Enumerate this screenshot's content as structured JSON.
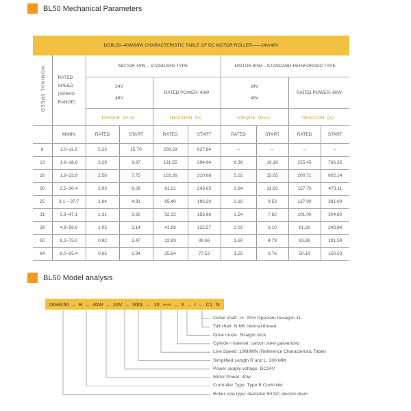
{
  "section1": {
    "title": "BL50 Mechanical Parameters"
  },
  "table": {
    "title": "DGBL50–40W/80W CHARACTERISTIC TABLE OF DC MOTOR ROLLER——24V/48V",
    "nominal_speed": "NOMINAL SPEED",
    "rated_speed": "RATED SPEED (SPEED RANGE)",
    "motor40": "MOTOR 40W – STANDARD TYPE",
    "motor80": "MOTOR 80W – STANDARD REINFORCED TYPE",
    "v24": "24V",
    "v48": "48V",
    "power40": "RATED POWER: 40W",
    "power80": "RATED POWER: 80W",
    "torque": "TORQUE（N.m）",
    "traction": "TRACTION（N）",
    "unit": "M/MIN",
    "rated": "RATED",
    "start": "START",
    "rows": [
      [
        "8",
        "1.0–11.8",
        "5.23",
        "15.70",
        "209.28",
        "627.84",
        "–",
        "–",
        "–",
        "–"
      ],
      [
        "13",
        "1.6–18.8",
        "3.29",
        "9.87",
        "131.55",
        "394.64",
        "6.39",
        "19.16",
        "255.45",
        "766.35"
      ],
      [
        "16",
        "1.9–23.9",
        "2.58",
        "7.75",
        "103.36",
        "310.08",
        "5.02",
        "15.05",
        "200.71",
        "602.14"
      ],
      [
        "20",
        "2.5–30.4",
        "2.03",
        "6.09",
        "81.21",
        "243.63",
        "3.94",
        "11.83",
        "157.70",
        "473.11"
      ],
      [
        "25",
        "3.1 – 37.7",
        "1.64",
        "4.91",
        "65.40",
        "196.20",
        "3.18",
        "9.53",
        "127.00",
        "381.00"
      ],
      [
        "31",
        "3.9–47.1",
        "1.31",
        "3.92",
        "52.32",
        "156.96",
        "2.54",
        "7.62",
        "101.00",
        "304.80"
      ],
      [
        "39",
        "4.9–58.9",
        "1.05",
        "3.14",
        "41.86",
        "125.57",
        "2.03",
        "6.10",
        "81.28",
        "243.84"
      ],
      [
        "50",
        "6.3–75.0",
        "0.82",
        "2.47",
        "32.89",
        "98.66",
        "1.60",
        "4.79",
        "63.86",
        "191.59"
      ],
      [
        "64",
        "8.0–95.4",
        "0.65",
        "1.94",
        "25.84",
        "77.52",
        "1.25",
        "3.76",
        "50.18",
        "150.53"
      ]
    ]
  },
  "section2": {
    "title": "BL50 Model analysis"
  },
  "model": {
    "parts": [
      "DGBL50",
      "–",
      "B",
      "–",
      "40W",
      "–",
      "24V",
      "–",
      "300L",
      "–",
      "10",
      "M/MIN",
      "–",
      "X",
      "–",
      "I",
      "–",
      "C1",
      "N"
    ],
    "labels": [
      "Outlet shaft: c1: Φ15 Opposite hexagon 11",
      "Tail shaft: N:M8 internal thread",
      "Drive mode: Straight stick",
      "Cylinder material: carbon steel galvanized",
      "Line Speed: 10M/MIN (Reference Characteristic Table)",
      "Simplified Length R and L: 300 MM",
      "Power supply voltage:  DC24V",
      "Motor Power: 40w",
      "Controller Type: Type B Controller",
      "Roller size type: diameter 50 DC electric drum"
    ]
  },
  "colors": {
    "accent": "#f39a1e",
    "band": "#f2c13f",
    "gold_text": "#c9a227"
  }
}
